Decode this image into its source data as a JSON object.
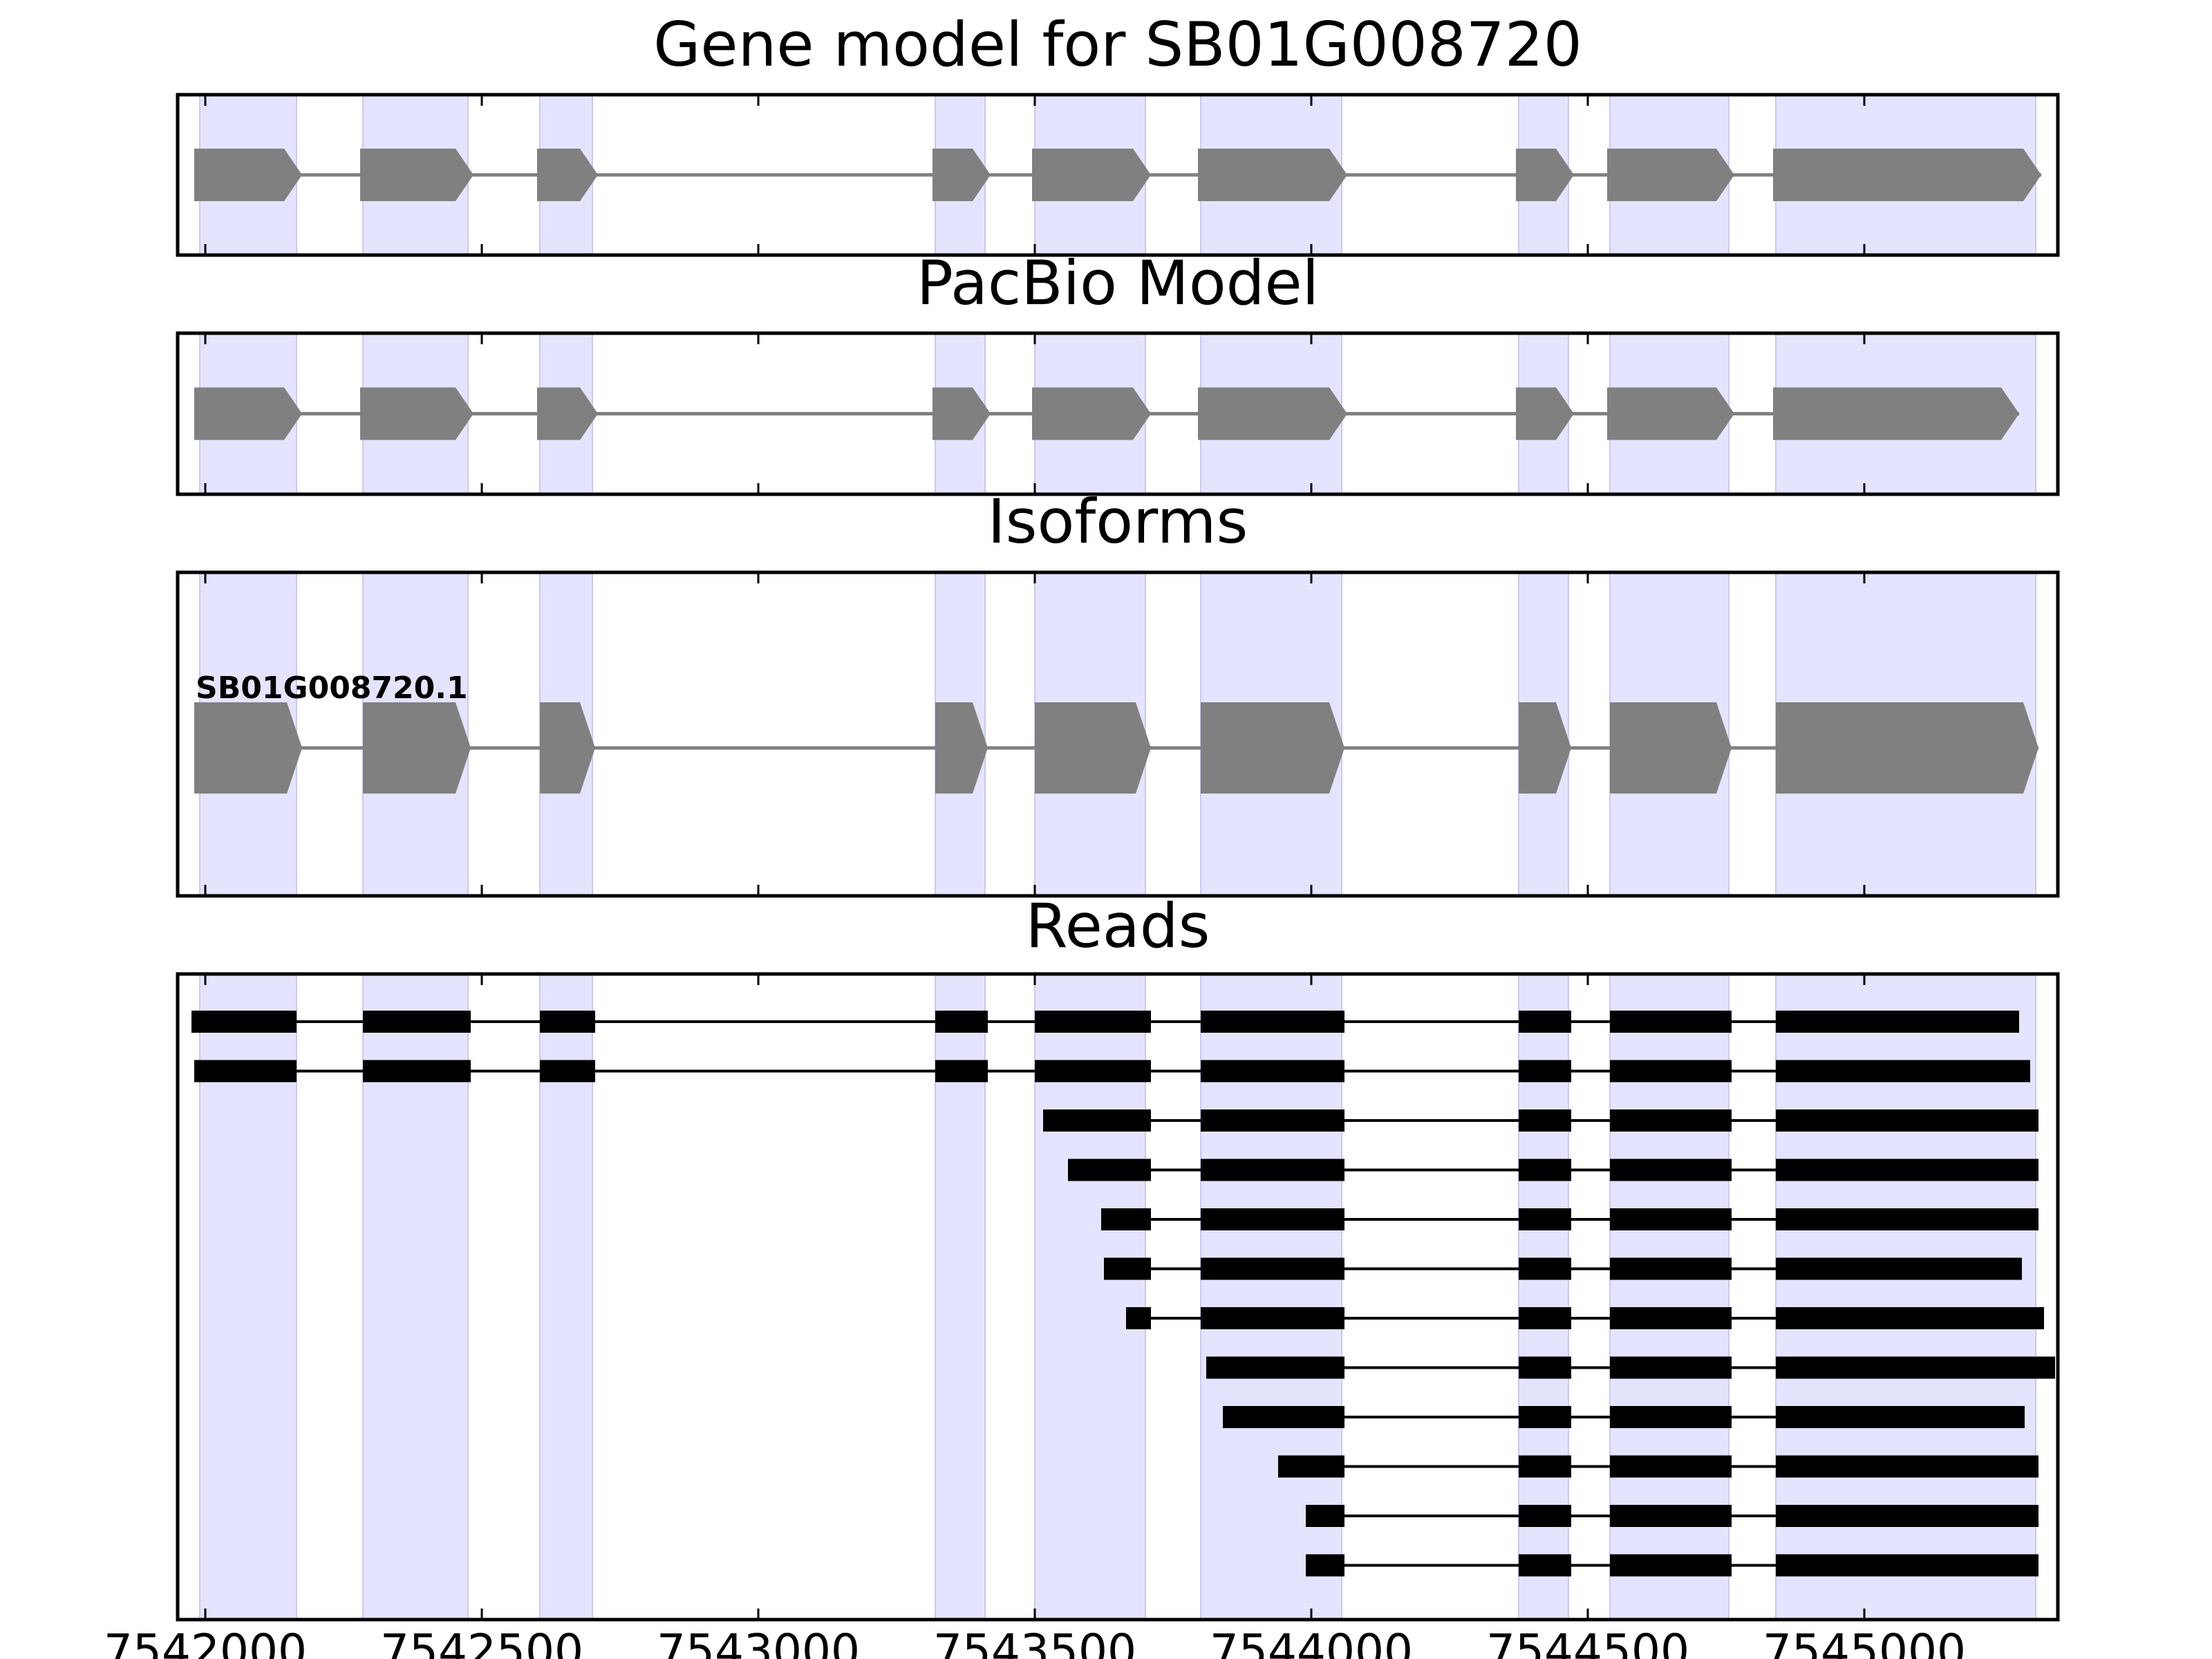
{
  "chart_data": {
    "type": "gene_structure",
    "xlim": [
      7541950,
      7545350
    ],
    "x_ticks": [
      {
        "value": 7542000,
        "label": "7542000"
      },
      {
        "value": 7542500,
        "label": "7542500"
      },
      {
        "value": 7543000,
        "label": "7543000"
      },
      {
        "value": 7543500,
        "label": "7543500"
      },
      {
        "value": 7544000,
        "label": "7544000"
      },
      {
        "value": 7544500,
        "label": "7544500"
      },
      {
        "value": 7545000,
        "label": "7545000"
      }
    ],
    "highlight_color": "#e4e4ff",
    "feature_color": "#808080",
    "read_color": "#000000",
    "exon_regions": [
      [
        7541990,
        7542165
      ],
      [
        7542285,
        7542475
      ],
      [
        7542605,
        7542700
      ],
      [
        7543320,
        7543410
      ],
      [
        7543500,
        7543700
      ],
      [
        7543800,
        7544055
      ],
      [
        7544375,
        7544465
      ],
      [
        7544540,
        7544755
      ],
      [
        7544840,
        7545310
      ]
    ],
    "panels": [
      {
        "title": "Gene model for SB01G008720",
        "kind": "model",
        "exons": [
          [
            7541980,
            7542175
          ],
          [
            7542280,
            7542485
          ],
          [
            7542600,
            7542710
          ],
          [
            7543315,
            7543420
          ],
          [
            7543495,
            7543710
          ],
          [
            7543795,
            7544065
          ],
          [
            7544370,
            7544475
          ],
          [
            7544535,
            7544765
          ],
          [
            7544835,
            7545320
          ]
        ]
      },
      {
        "title": "PacBio Model",
        "kind": "model",
        "exons": [
          [
            7541980,
            7542175
          ],
          [
            7542280,
            7542485
          ],
          [
            7542600,
            7542710
          ],
          [
            7543315,
            7543420
          ],
          [
            7543495,
            7543710
          ],
          [
            7543795,
            7544065
          ],
          [
            7544370,
            7544475
          ],
          [
            7544535,
            7544765
          ],
          [
            7544835,
            7545280
          ]
        ]
      },
      {
        "title": "Isoforms",
        "kind": "isoforms",
        "isoform_label": "SB01G008720.1",
        "exons": [
          [
            7541980,
            7542175
          ],
          [
            7542285,
            7542480
          ],
          [
            7542605,
            7542705
          ],
          [
            7543320,
            7543415
          ],
          [
            7543500,
            7543710
          ],
          [
            7543800,
            7544060
          ],
          [
            7544375,
            7544470
          ],
          [
            7544540,
            7544760
          ],
          [
            7544840,
            7545315
          ]
        ]
      },
      {
        "title": "Reads",
        "kind": "reads",
        "reads": [
          [
            [
              7541975,
              7542165
            ],
            [
              7542285,
              7542480
            ],
            [
              7542605,
              7542705
            ],
            [
              7543320,
              7543415
            ],
            [
              7543500,
              7543710
            ],
            [
              7543800,
              7544060
            ],
            [
              7544375,
              7544470
            ],
            [
              7544540,
              7544760
            ],
            [
              7544840,
              7545280
            ]
          ],
          [
            [
              7541980,
              7542165
            ],
            [
              7542285,
              7542480
            ],
            [
              7542605,
              7542705
            ],
            [
              7543320,
              7543415
            ],
            [
              7543500,
              7543710
            ],
            [
              7543800,
              7544060
            ],
            [
              7544375,
              7544470
            ],
            [
              7544540,
              7544760
            ],
            [
              7544840,
              7545300
            ]
          ],
          [
            [
              7543515,
              7543710
            ],
            [
              7543800,
              7544060
            ],
            [
              7544375,
              7544470
            ],
            [
              7544540,
              7544760
            ],
            [
              7544840,
              7545315
            ]
          ],
          [
            [
              7543560,
              7543710
            ],
            [
              7543800,
              7544060
            ],
            [
              7544375,
              7544470
            ],
            [
              7544540,
              7544760
            ],
            [
              7544840,
              7545315
            ]
          ],
          [
            [
              7543620,
              7543710
            ],
            [
              7543800,
              7544060
            ],
            [
              7544375,
              7544470
            ],
            [
              7544540,
              7544760
            ],
            [
              7544840,
              7545315
            ]
          ],
          [
            [
              7543625,
              7543710
            ],
            [
              7543800,
              7544060
            ],
            [
              7544375,
              7544470
            ],
            [
              7544540,
              7544760
            ],
            [
              7544840,
              7545285
            ]
          ],
          [
            [
              7543665,
              7543710
            ],
            [
              7543800,
              7544060
            ],
            [
              7544375,
              7544470
            ],
            [
              7544540,
              7544760
            ],
            [
              7544840,
              7545325
            ]
          ],
          [
            [
              7543810,
              7544060
            ],
            [
              7544375,
              7544470
            ],
            [
              7544540,
              7544760
            ],
            [
              7544840,
              7545345
            ]
          ],
          [
            [
              7543840,
              7544060
            ],
            [
              7544375,
              7544470
            ],
            [
              7544540,
              7544760
            ],
            [
              7544840,
              7545290
            ]
          ],
          [
            [
              7543940,
              7544060
            ],
            [
              7544375,
              7544470
            ],
            [
              7544540,
              7544760
            ],
            [
              7544840,
              7545315
            ]
          ],
          [
            [
              7543990,
              7544060
            ],
            [
              7544375,
              7544470
            ],
            [
              7544540,
              7544760
            ],
            [
              7544840,
              7545315
            ]
          ],
          [
            [
              7543990,
              7544060
            ],
            [
              7544375,
              7544470
            ],
            [
              7544540,
              7544760
            ],
            [
              7544840,
              7545315
            ]
          ]
        ]
      }
    ]
  }
}
